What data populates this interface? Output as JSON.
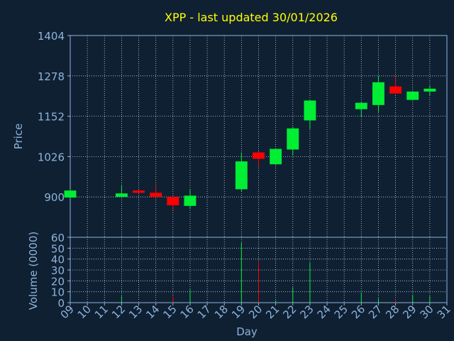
{
  "chart_data": [
    {
      "type": "candlestick",
      "title": "XPP - last updated 30/01/2026",
      "y_label": "Price",
      "x": [
        9,
        12,
        13,
        14,
        15,
        16,
        19,
        20,
        21,
        22,
        23,
        26,
        27,
        28,
        29,
        30
      ],
      "open": [
        898,
        900,
        920,
        913,
        900,
        872,
        924,
        1039,
        1002,
        1048,
        1139,
        1174,
        1187,
        1245,
        1203,
        1229
      ],
      "high": [
        922,
        935,
        923,
        935,
        902,
        922,
        1039,
        1041,
        1052,
        1119,
        1203,
        1196,
        1278,
        1276,
        1231,
        1247
      ],
      "low": [
        896,
        900,
        911,
        898,
        858,
        862,
        918,
        993,
        1000,
        1030,
        1112,
        1150,
        1165,
        1221,
        1201,
        1216
      ],
      "close": [
        920,
        911,
        913,
        900,
        874,
        904,
        1011,
        1019,
        1050,
        1114,
        1201,
        1194,
        1258,
        1223,
        1229,
        1238
      ],
      "up_color": "#00ee33",
      "down_color": "#ff0000",
      "xlim": [
        9,
        31
      ],
      "ylim": [
        774,
        1404
      ],
      "yticks": [
        900,
        1026,
        1152,
        1278,
        1404
      ],
      "grid": true
    },
    {
      "type": "bar",
      "x_label": "Day",
      "y_label": "Volume (0000)",
      "x": [
        9,
        12,
        13,
        14,
        15,
        16,
        19,
        20,
        21,
        22,
        23,
        26,
        27,
        28,
        29,
        30
      ],
      "values": [
        0,
        6,
        1,
        1,
        6,
        12,
        55,
        37,
        2,
        14,
        37,
        9,
        4,
        3,
        7,
        6
      ],
      "xlim": [
        9,
        31
      ],
      "ylim": [
        0,
        60
      ],
      "yticks": [
        0,
        10,
        20,
        30,
        40,
        50,
        60
      ],
      "xticks": [
        {
          "value": 9,
          "label": "09"
        },
        10,
        11,
        12,
        13,
        14,
        15,
        16,
        17,
        18,
        19,
        20,
        21,
        22,
        23,
        24,
        25,
        26,
        27,
        28,
        29,
        30,
        31
      ],
      "grid": true
    }
  ]
}
